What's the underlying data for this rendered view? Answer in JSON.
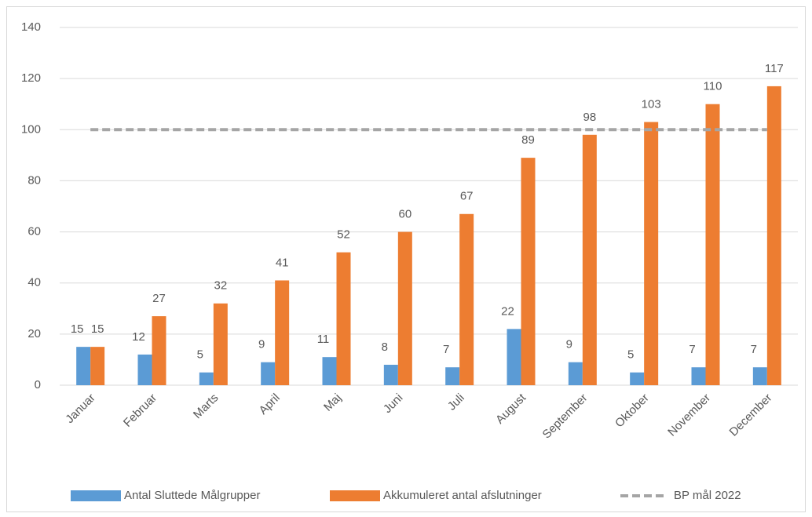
{
  "chart_data": {
    "type": "bar",
    "categories": [
      "Januar",
      "Februar",
      "Marts",
      "April",
      "Maj",
      "Juni",
      "Juli",
      "August",
      "September",
      "Oktober",
      "November",
      "December"
    ],
    "series": [
      {
        "name": "Antal Sluttede Målgrupper",
        "color": "#5b9bd5",
        "values": [
          15,
          12,
          5,
          9,
          11,
          8,
          7,
          22,
          9,
          5,
          7,
          7
        ]
      },
      {
        "name": "Akkumuleret antal afslutninger",
        "color": "#ed7d31",
        "values": [
          15,
          27,
          32,
          41,
          52,
          60,
          67,
          89,
          98,
          103,
          110,
          117
        ]
      },
      {
        "name": "BP mål 2022",
        "color": "#a5a5a5",
        "type": "line",
        "dashed": true,
        "values": [
          100,
          100,
          100,
          100,
          100,
          100,
          100,
          100,
          100,
          100,
          100,
          100
        ]
      }
    ],
    "ylim": [
      0,
      140
    ],
    "yticks": [
      0,
      20,
      40,
      60,
      80,
      100,
      120,
      140
    ],
    "grid": true,
    "legend": "bottom"
  }
}
